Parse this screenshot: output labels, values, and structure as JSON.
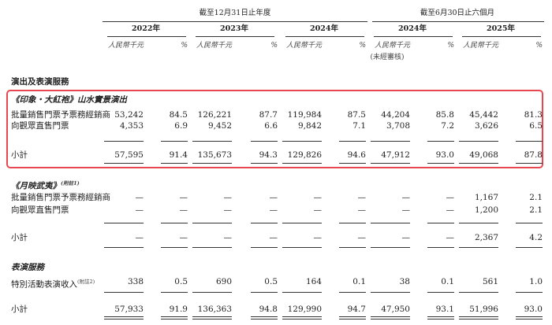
{
  "header": {
    "period_groups": [
      "截至12月31日止年度",
      "截至6月30日止六個月"
    ],
    "years": [
      "2022年",
      "2023年",
      "2024年",
      "2024年",
      "2025年"
    ],
    "unit": [
      "人民幣千元",
      "%",
      "人民幣千元",
      "%",
      "人民幣千元",
      "%",
      "人民幣千元",
      "%",
      "人民幣千元",
      "%"
    ],
    "unaudited": "(未經審核)"
  },
  "rows": [
    {
      "label": "演出及表演服務",
      "style": "section"
    },
    {
      "label": "《印象・大紅袍》山水實景演出",
      "style": "subsection"
    },
    {
      "label": "批量銷售門票予票務經銷商",
      "cells": [
        "53,242",
        "84.5",
        "126,221",
        "87.7",
        "119,984",
        "87.5",
        "44,204",
        "85.8",
        "45,442",
        "81.3"
      ]
    },
    {
      "label": "向觀眾直售門票",
      "cells": [
        "4,353",
        "6.9",
        "9,452",
        "6.6",
        "9,842",
        "7.1",
        "3,708",
        "7.2",
        "3,626",
        "6.5"
      ]
    },
    {
      "label": "小計",
      "cells": [
        "57,595",
        "91.4",
        "135,673",
        "94.3",
        "129,826",
        "94.6",
        "47,912",
        "93.0",
        "49,068",
        "87.8"
      ]
    },
    {
      "label": "《月映武夷》",
      "note": "(附註1)",
      "style": "subsection"
    },
    {
      "label": "批量銷售門票予票務經銷商",
      "cells": [
        "—",
        "—",
        "—",
        "—",
        "—",
        "—",
        "—",
        "—",
        "1,167",
        "2.1"
      ]
    },
    {
      "label": "向觀眾直售門票",
      "cells": [
        "—",
        "—",
        "—",
        "—",
        "—",
        "—",
        "—",
        "—",
        "1,200",
        "2.1"
      ]
    },
    {
      "label": "小計",
      "cells": [
        "—",
        "—",
        "—",
        "—",
        "—",
        "—",
        "—",
        "—",
        "2,367",
        "4.2"
      ]
    },
    {
      "label": "表演服務",
      "style": "subsection"
    },
    {
      "label": "特別活動表演收入",
      "note": "(附註2)",
      "cells": [
        "338",
        "0.5",
        "690",
        "0.5",
        "164",
        "0.1",
        "38",
        "0.1",
        "561",
        "1.0"
      ]
    },
    {
      "label": "小計",
      "cells": [
        "57,933",
        "91.9",
        "136,363",
        "94.8",
        "129,990",
        "94.7",
        "47,950",
        "93.1",
        "51,996",
        "93.0"
      ]
    }
  ]
}
